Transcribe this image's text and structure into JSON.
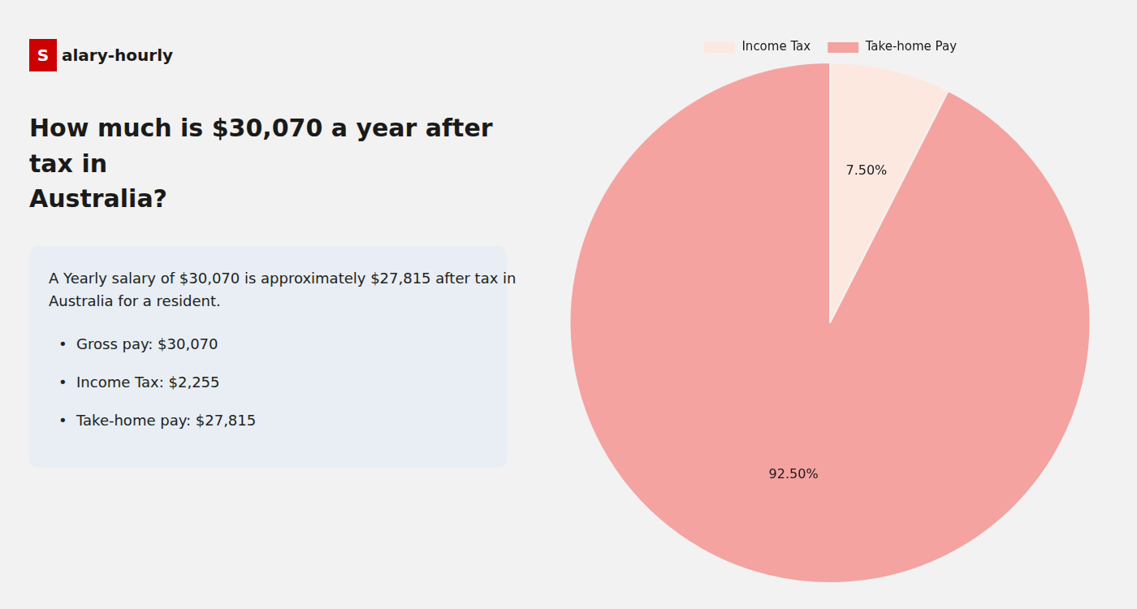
{
  "chart_data": {
    "type": "pie",
    "title": [
      "How much is $30,070 a year after tax in",
      "Australia?"
    ],
    "categories": [
      "Income Tax",
      "Take-home Pay"
    ],
    "values": [
      7.5,
      92.5
    ],
    "value_labels": [
      "7.50%",
      "92.50%"
    ],
    "colors": [
      "#fde8e0",
      "#f4a3a0"
    ],
    "data_labels": true,
    "legend": "top",
    "annotations": [
      "Salary-hourly",
      "A Yearly salary of $30,070 is approximately $27,815 after tax in",
      "Australia for a resident.",
      "•  Gross pay: $30,070",
      "•  Income Tax: $2,255",
      "•  Take-home pay: $27,815"
    ]
  }
}
